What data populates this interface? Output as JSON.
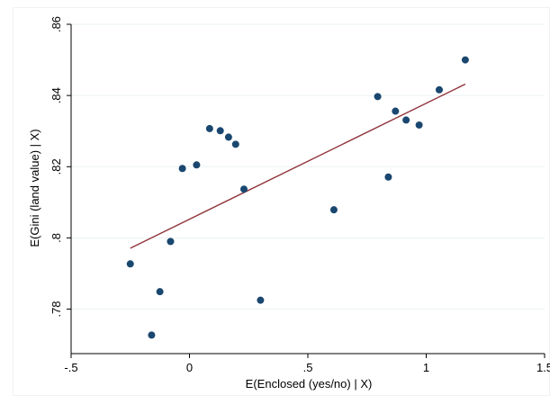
{
  "chart_data": {
    "type": "scatter",
    "title": "",
    "xlabel": "E(Enclosed (yes/no) | X)",
    "ylabel": "E(Gini (land value) | X)",
    "xlim": [
      -0.5,
      1.5
    ],
    "ylim": [
      0.7675,
      0.86
    ],
    "x_ticks": [
      -0.5,
      0,
      0.5,
      1,
      1.5
    ],
    "x_tick_labels": [
      "-.5",
      "0",
      ".5",
      "1",
      "1.5"
    ],
    "y_ticks": [
      0.78,
      0.8,
      0.82,
      0.84,
      0.86
    ],
    "y_tick_labels": [
      ".78",
      ".8",
      ".82",
      ".84",
      ".86"
    ],
    "grid": "horizontal",
    "legend": "none",
    "colors": {
      "points": "#1a476f",
      "fit_line": "#90353b",
      "grid": "#eaf2f3",
      "axis": "#000000"
    },
    "series": [
      {
        "values": [
          {
            "x": -0.25,
            "y": 0.7927
          },
          {
            "x": -0.16,
            "y": 0.7727
          },
          {
            "x": -0.125,
            "y": 0.7849
          },
          {
            "x": -0.08,
            "y": 0.799
          },
          {
            "x": -0.03,
            "y": 0.8195
          },
          {
            "x": 0.03,
            "y": 0.8205
          },
          {
            "x": 0.085,
            "y": 0.8307
          },
          {
            "x": 0.13,
            "y": 0.8301
          },
          {
            "x": 0.165,
            "y": 0.8283
          },
          {
            "x": 0.195,
            "y": 0.8263
          },
          {
            "x": 0.23,
            "y": 0.8137
          },
          {
            "x": 0.3,
            "y": 0.7825
          },
          {
            "x": 0.61,
            "y": 0.8079
          },
          {
            "x": 0.795,
            "y": 0.8397
          },
          {
            "x": 0.84,
            "y": 0.8171
          },
          {
            "x": 0.87,
            "y": 0.8356
          },
          {
            "x": 0.915,
            "y": 0.8331
          },
          {
            "x": 0.97,
            "y": 0.8317
          },
          {
            "x": 1.055,
            "y": 0.8416
          },
          {
            "x": 1.165,
            "y": 0.85
          }
        ]
      }
    ],
    "fit_line": {
      "type": "line",
      "values": [
        {
          "x": -0.25,
          "y": 0.7971
        },
        {
          "x": 1.165,
          "y": 0.8432
        }
      ]
    }
  }
}
